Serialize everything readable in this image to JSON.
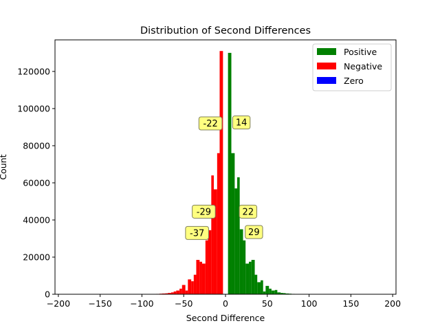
{
  "chart_data": {
    "type": "bar",
    "title": "Distribution of Second Differences",
    "xlabel": "Second Difference",
    "ylabel": "Count",
    "xlim": [
      -204,
      204
    ],
    "ylim": [
      0,
      137000
    ],
    "xticks": [
      -200,
      -150,
      -100,
      -50,
      0,
      50,
      100,
      150,
      200
    ],
    "yticks": [
      0,
      20000,
      40000,
      60000,
      80000,
      100000,
      120000
    ],
    "grid": false,
    "legend_position": "top-right",
    "series": [
      {
        "name": "Positive",
        "color": "#008000",
        "bins": [
          {
            "x0": 3,
            "x1": 7,
            "value": 130000
          },
          {
            "x0": 7,
            "x1": 11,
            "value": 76000
          },
          {
            "x0": 11,
            "x1": 14,
            "value": 57000
          },
          {
            "x0": 14,
            "x1": 17,
            "value": 63000
          },
          {
            "x0": 17,
            "x1": 21,
            "value": 35000
          },
          {
            "x0": 21,
            "x1": 24,
            "value": 29000
          },
          {
            "x0": 24,
            "x1": 28,
            "value": 16500
          },
          {
            "x0": 28,
            "x1": 31,
            "value": 17500
          },
          {
            "x0": 31,
            "x1": 35,
            "value": 18500
          },
          {
            "x0": 35,
            "x1": 38,
            "value": 10500
          },
          {
            "x0": 38,
            "x1": 42,
            "value": 6500
          },
          {
            "x0": 42,
            "x1": 45,
            "value": 7500
          },
          {
            "x0": 45,
            "x1": 48,
            "value": 1500
          },
          {
            "x0": 48,
            "x1": 52,
            "value": 4500
          },
          {
            "x0": 52,
            "x1": 55,
            "value": 3000
          },
          {
            "x0": 55,
            "x1": 59,
            "value": 2000
          },
          {
            "x0": 59,
            "x1": 62,
            "value": 2300
          },
          {
            "x0": 62,
            "x1": 66,
            "value": 1000
          },
          {
            "x0": 66,
            "x1": 69,
            "value": 700
          },
          {
            "x0": 69,
            "x1": 72,
            "value": 600
          },
          {
            "x0": 72,
            "x1": 76,
            "value": 400
          },
          {
            "x0": 76,
            "x1": 79,
            "value": 300
          },
          {
            "x0": 79,
            "x1": 83,
            "value": 200
          },
          {
            "x0": 83,
            "x1": 86,
            "value": 100
          },
          {
            "x0": 86,
            "x1": 90,
            "value": 50
          }
        ]
      },
      {
        "name": "Negative",
        "color": "#ff0000",
        "bins": [
          {
            "x0": -7,
            "x1": -3,
            "value": 131000
          },
          {
            "x0": -10,
            "x1": -7,
            "value": 76000
          },
          {
            "x0": -14,
            "x1": -10,
            "value": 56500
          },
          {
            "x0": -17,
            "x1": -14,
            "value": 64000
          },
          {
            "x0": -21,
            "x1": -17,
            "value": 34500
          },
          {
            "x0": -24,
            "x1": -21,
            "value": 29000
          },
          {
            "x0": -28,
            "x1": -24,
            "value": 16500
          },
          {
            "x0": -31,
            "x1": -28,
            "value": 17500
          },
          {
            "x0": -35,
            "x1": -31,
            "value": 18500
          },
          {
            "x0": -38,
            "x1": -35,
            "value": 10500
          },
          {
            "x0": -41,
            "x1": -38,
            "value": 7000
          },
          {
            "x0": -45,
            "x1": -41,
            "value": 8000
          },
          {
            "x0": -48,
            "x1": -45,
            "value": 2000
          },
          {
            "x0": -52,
            "x1": -48,
            "value": 5000
          },
          {
            "x0": -55,
            "x1": -52,
            "value": 3000
          },
          {
            "x0": -59,
            "x1": -55,
            "value": 2000
          },
          {
            "x0": -62,
            "x1": -59,
            "value": 1500
          },
          {
            "x0": -65,
            "x1": -62,
            "value": 1000
          },
          {
            "x0": -69,
            "x1": -65,
            "value": 700
          },
          {
            "x0": -72,
            "x1": -69,
            "value": 500
          },
          {
            "x0": -76,
            "x1": -72,
            "value": 400
          },
          {
            "x0": -79,
            "x1": -76,
            "value": 300
          },
          {
            "x0": -83,
            "x1": -79,
            "value": 200
          },
          {
            "x0": -86,
            "x1": -83,
            "value": 100
          },
          {
            "x0": -90,
            "x1": -86,
            "value": 50
          }
        ]
      },
      {
        "name": "Zero",
        "color": "#0000ff",
        "bins": []
      }
    ],
    "annotations": [
      {
        "text": "-22",
        "x": -18,
        "y": 92000
      },
      {
        "text": "14",
        "x": 19,
        "y": 92500
      },
      {
        "text": "-29",
        "x": -26,
        "y": 44500
      },
      {
        "text": "22",
        "x": 27,
        "y": 44500
      },
      {
        "text": "-37",
        "x": -34,
        "y": 33000
      },
      {
        "text": "29",
        "x": 34,
        "y": 33500
      }
    ]
  }
}
